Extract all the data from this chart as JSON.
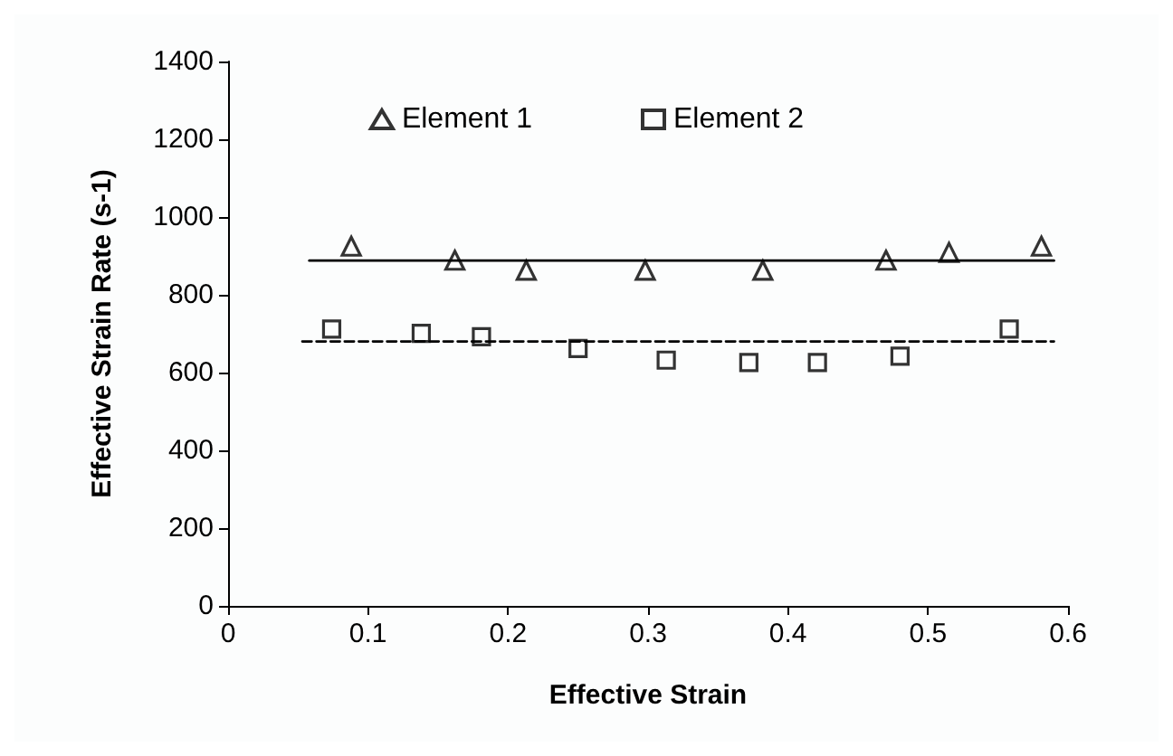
{
  "chart_data": {
    "type": "scatter",
    "xlabel": "Effective Strain",
    "ylabel": "Effective Strain Rate (s-1)",
    "xlim": [
      0,
      0.6
    ],
    "ylim": [
      0,
      1400
    ],
    "xticks": [
      0,
      0.1,
      0.2,
      0.3,
      0.4,
      0.5,
      0.6
    ],
    "yticks": [
      0,
      200,
      400,
      600,
      800,
      1000,
      1200,
      1400
    ],
    "grid": false,
    "legend": "top",
    "series": [
      {
        "name": "Element 1",
        "type": "scatter",
        "marker": "triangle",
        "color": "#000000",
        "x": [
          0.088,
          0.162,
          0.213,
          0.298,
          0.382,
          0.47,
          0.515,
          0.581
        ],
        "values": [
          925,
          889,
          863,
          863,
          863,
          889,
          909,
          925
        ]
      },
      {
        "name": "Element 2",
        "type": "scatter",
        "marker": "square",
        "color": "#000000",
        "x": [
          0.074,
          0.138,
          0.181,
          0.25,
          0.313,
          0.372,
          0.421,
          0.48,
          0.558
        ],
        "values": [
          712,
          701,
          692,
          662,
          632,
          626,
          626,
          642,
          712
        ]
      },
      {
        "type": "line",
        "line_style": "solid",
        "color": "#000000",
        "x": [
          0.058,
          0.59
        ],
        "values": [
          888,
          888
        ]
      },
      {
        "type": "line",
        "line_style": "dashed",
        "color": "#000000",
        "x": [
          0.053,
          0.59
        ],
        "values": [
          680,
          680
        ]
      }
    ]
  }
}
